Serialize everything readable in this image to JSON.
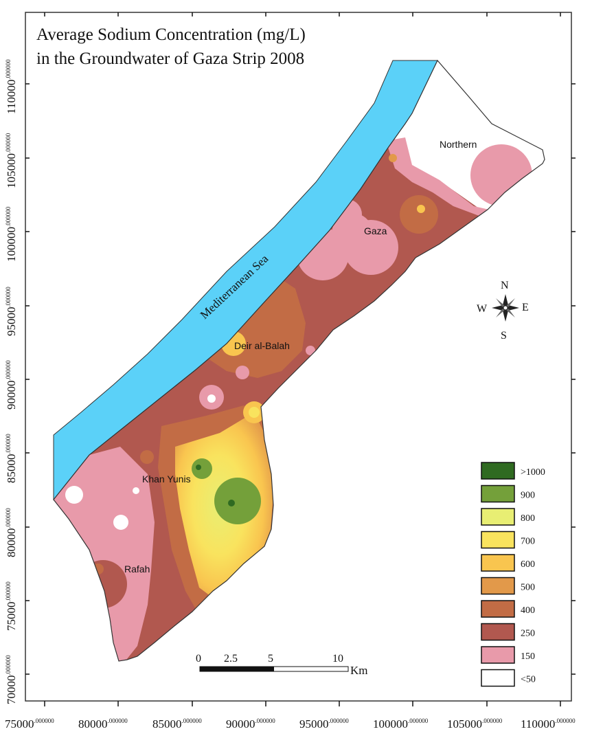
{
  "title": {
    "line1": "Average Sodium Concentration (mg/L)",
    "line2": "in the Groundwater of Gaza Strip 2008"
  },
  "sea_label": "Mediterranean Sea",
  "places": [
    {
      "name": "Northern"
    },
    {
      "name": "Gaza"
    },
    {
      "name": "Deir al-Balah"
    },
    {
      "name": "Khan Yunis"
    },
    {
      "name": "Rafah"
    }
  ],
  "compass": {
    "n": "N",
    "e": "E",
    "s": "S",
    "w": "W"
  },
  "scale_bar": {
    "ticks": [
      "0",
      "2.5",
      "5",
      "10"
    ],
    "unit": "Km"
  },
  "legend": [
    {
      "label": ">1000",
      "color": "#2f6a21"
    },
    {
      "label": "900",
      "color": "#74a03a"
    },
    {
      "label": "800",
      "color": "#e8ee73"
    },
    {
      "label": "700",
      "color": "#f9e35e"
    },
    {
      "label": "600",
      "color": "#f9c54f"
    },
    {
      "label": "500",
      "color": "#e2994a"
    },
    {
      "label": "400",
      "color": "#c26c45"
    },
    {
      "label": "250",
      "color": "#b1584f"
    },
    {
      "label": "150",
      "color": "#e89aaa"
    },
    {
      "label": "<50",
      "color": "#ffffff"
    }
  ],
  "colors": {
    "sea": "#5bd1f8",
    "border": "#333333"
  },
  "x_axis": {
    "labels": [
      {
        "main": "75000",
        "sup": ".000000"
      },
      {
        "main": "80000",
        "sup": ".000000"
      },
      {
        "main": "85000",
        "sup": ".000000"
      },
      {
        "main": "90000",
        "sup": ".000000"
      },
      {
        "main": "95000",
        "sup": ".000000"
      },
      {
        "main": "100000",
        "sup": ".000000"
      },
      {
        "main": "105000",
        "sup": ".000000"
      },
      {
        "main": "110000",
        "sup": ".000000"
      }
    ]
  },
  "y_axis": {
    "labels": [
      {
        "main": "110000",
        "sup": ".000000"
      },
      {
        "main": "105000",
        "sup": ".000000"
      },
      {
        "main": "100000",
        "sup": ".000000"
      },
      {
        "main": "95000",
        "sup": ".000000"
      },
      {
        "main": "90000",
        "sup": ".000000"
      },
      {
        "main": "85000",
        "sup": ".000000"
      },
      {
        "main": "80000",
        "sup": ".000000"
      },
      {
        "main": "75000",
        "sup": ".000000"
      },
      {
        "main": "70000",
        "sup": ".000000"
      }
    ]
  }
}
